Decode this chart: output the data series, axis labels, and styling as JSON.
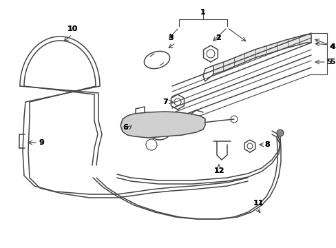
{
  "background_color": "#ffffff",
  "line_color": "#444444",
  "label_color": "#000000",
  "figsize": [
    4.89,
    3.6
  ],
  "dpi": 100
}
